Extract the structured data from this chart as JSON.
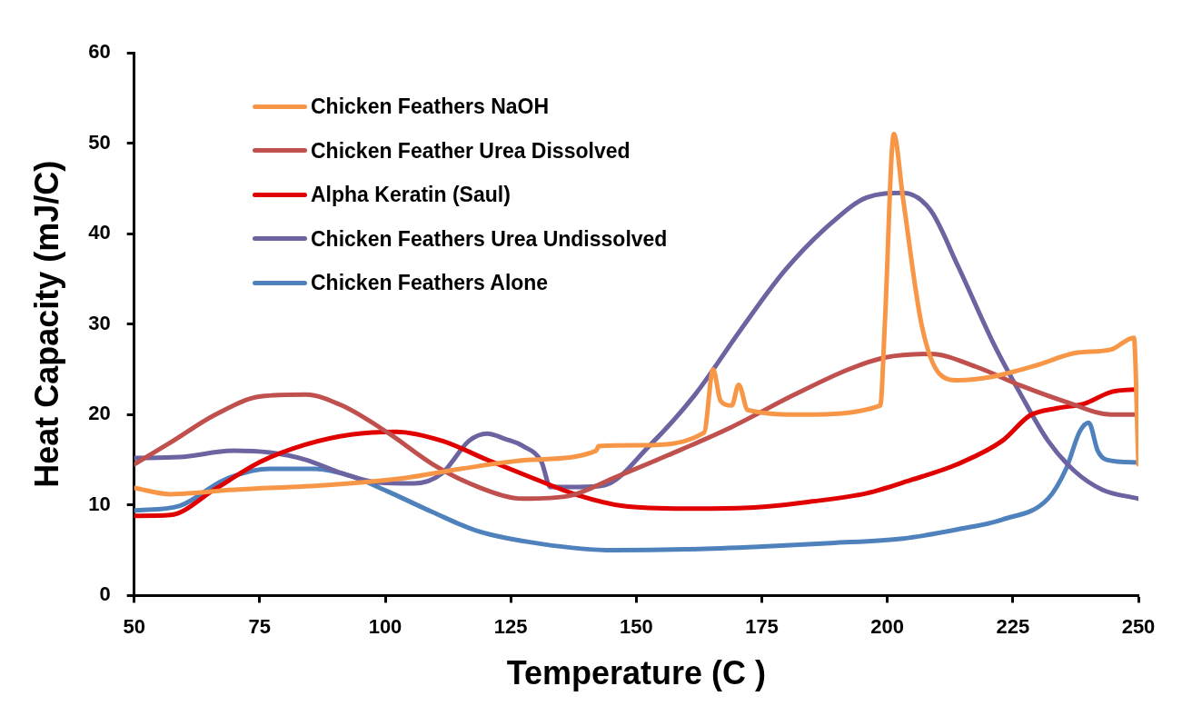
{
  "chart_data": {
    "type": "line",
    "xlabel": "Temperature (C )",
    "ylabel": "Heat Capacity (mJ/C)",
    "xlim": [
      50,
      250
    ],
    "xticks": [
      50,
      75,
      100,
      125,
      150,
      175,
      200,
      225,
      250
    ],
    "ylim": [
      0,
      60
    ],
    "yticks": [
      0,
      10,
      20,
      30,
      40,
      50,
      60
    ],
    "grid": false,
    "legend": "top left",
    "marker": "none",
    "line_style": "solid",
    "series": [
      {
        "name": "Chicken Feathers NaOH",
        "color": "#f79646",
        "x": [
          50,
          57.2,
          70,
          88,
          104,
          115,
          129,
          142,
          142.5,
          151,
          163.5,
          165.3,
          166.8,
          169,
          170.4,
          172.2,
          183.3,
          198.6,
          199.5,
          201.3,
          203.1,
          206.8,
          210.4,
          214,
          221,
          230,
          237.4,
          244.6,
          249.1,
          250
        ],
        "values": [
          11.9,
          11.2,
          11.7,
          12.2,
          13,
          14,
          15,
          16,
          16.5,
          16.6,
          18,
          25,
          21.5,
          21,
          23.3,
          20.5,
          20,
          21,
          30,
          51,
          44,
          30,
          24.5,
          23.8,
          24.2,
          25.5,
          26.8,
          27.2,
          28.5,
          14.5
        ]
      },
      {
        "name": "Chicken Feather Urea Dissolved",
        "color": "#c0504d",
        "x": [
          50,
          57.2,
          66.2,
          75.2,
          84.2,
          91.4,
          100.5,
          109.5,
          118.5,
          127.5,
          136.5,
          145.5,
          156.3,
          168.9,
          181.5,
          192.3,
          199.5,
          208.6,
          217.6,
          226.6,
          235.6,
          244.6,
          250
        ],
        "values": [
          14.5,
          16.9,
          20,
          22,
          22.2,
          21,
          18,
          14.5,
          12,
          10.7,
          11,
          13,
          15.5,
          18.6,
          22.2,
          25,
          26.3,
          26.7,
          25.3,
          23.2,
          21.4,
          20,
          20
        ]
      },
      {
        "name": "Alpha Keratin (Saul)",
        "color": "#e00000",
        "x": [
          50,
          57.2,
          66.2,
          75.2,
          84.2,
          93.2,
          102.2,
          111.3,
          120.3,
          129.3,
          138.3,
          147.3,
          159.9,
          172.5,
          185.1,
          195.9,
          204.9,
          213.9,
          222.9,
          228.4,
          233.8,
          239.2,
          244.6,
          250
        ],
        "values": [
          8.8,
          8.9,
          11.8,
          14.8,
          16.7,
          17.8,
          18.1,
          17.1,
          15,
          13,
          11.1,
          9.9,
          9.6,
          9.7,
          10.4,
          11.3,
          12.8,
          14.5,
          17.1,
          19.9,
          20.7,
          21.2,
          22.5,
          22.8
        ]
      },
      {
        "name": "Chicken Feathers Urea Undissolved",
        "color": "#6b64a0",
        "x": [
          50,
          59,
          69.8,
          77,
          84.2,
          91.4,
          98.6,
          105.8,
          111.3,
          116.7,
          120.3,
          123.9,
          127.5,
          131.1,
          132.9,
          138.3,
          143.7,
          152.7,
          161.7,
          170.7,
          179.7,
          188.7,
          195.9,
          203.1,
          208.6,
          214,
          221.2,
          226.6,
          232,
          237.4,
          242.8,
          250
        ],
        "values": [
          15.2,
          15.3,
          16,
          15.8,
          15,
          13.5,
          12.5,
          12.4,
          13.5,
          17.1,
          17.9,
          17.3,
          16.5,
          14.8,
          12,
          12,
          12.2,
          16.6,
          22.2,
          29.3,
          36,
          41.1,
          44,
          44.5,
          42.6,
          36.5,
          27.8,
          22.2,
          17.1,
          13.7,
          11.7,
          10.7
        ]
      },
      {
        "name": "Chicken Feathers Alone",
        "color": "#4f81bd",
        "x": [
          50,
          59,
          68,
          77,
          86,
          93.2,
          100.5,
          109.5,
          118.5,
          131.1,
          145.5,
          159.9,
          174.3,
          188.7,
          203.1,
          213.9,
          222.9,
          232,
          235.6,
          238.3,
          240.1,
          241.9,
          243.7,
          250
        ],
        "values": [
          9.4,
          9.9,
          12.8,
          14,
          14,
          13.2,
          11.5,
          9.2,
          7.1,
          5.7,
          5,
          5.1,
          5.4,
          5.8,
          6.3,
          7.3,
          8.4,
          10.7,
          14,
          18.1,
          19.1,
          16,
          15,
          14.7
        ]
      }
    ]
  }
}
